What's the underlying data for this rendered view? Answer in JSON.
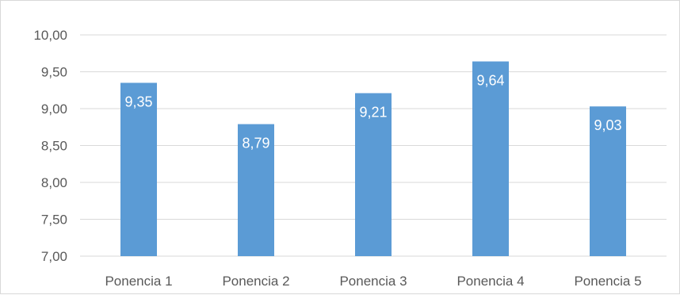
{
  "chart_data": {
    "type": "bar",
    "categories": [
      "Ponencia 1",
      "Ponencia 2",
      "Ponencia 3",
      "Ponencia 4",
      "Ponencia 5"
    ],
    "values": [
      9.35,
      8.79,
      9.21,
      9.64,
      9.03
    ],
    "value_labels": [
      "9,35",
      "8,79",
      "9,21",
      "9,64",
      "9,03"
    ],
    "yticks": [
      7.0,
      7.5,
      8.0,
      8.5,
      9.0,
      9.5,
      10.0
    ],
    "ytick_labels": [
      "7,00",
      "7,50",
      "8,00",
      "8,50",
      "9,00",
      "9,50",
      "10,00"
    ],
    "ylim": [
      7.0,
      10.0
    ],
    "title": "",
    "xlabel": "",
    "ylabel": "",
    "grid": true,
    "legend": "none",
    "bar_color": "#5b9bd5",
    "grid_color": "#d9d9d9",
    "text_color": "#595959"
  }
}
